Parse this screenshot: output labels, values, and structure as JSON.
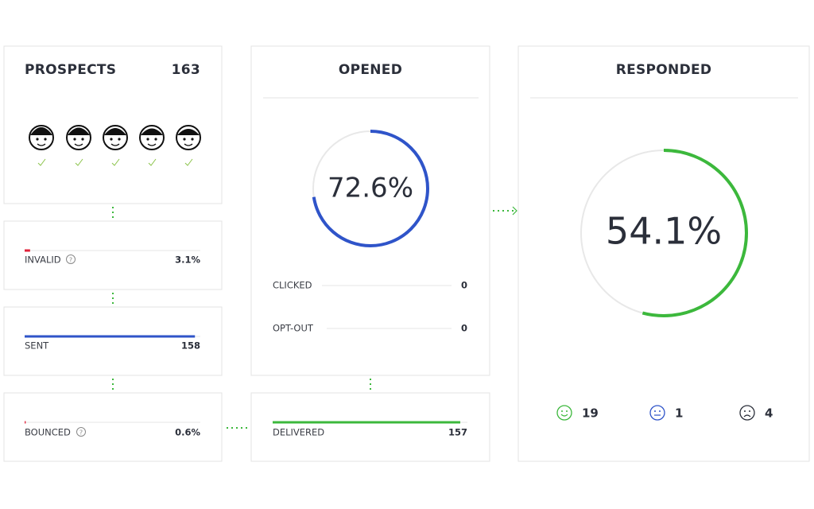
{
  "prospects": {
    "title": "PROSPECTS",
    "count": 163
  },
  "invalid": {
    "label": "INVALID",
    "value": {
      "value": 3.1,
      "label": "3.1%"
    },
    "color": "#e0223a"
  },
  "sent": {
    "label": "SENT",
    "value": 158,
    "color": "#2f54c9"
  },
  "bounced": {
    "label": "BOUNCED",
    "value": {
      "value": 0.6,
      "label": "0.6%"
    },
    "color": "#e0223a"
  },
  "opened": {
    "title": "OPENED",
    "rate": {
      "value": 72.6,
      "label": "72.6%"
    },
    "color": "#2f54c9",
    "rows": [
      {
        "label": "CLICKED",
        "value": 0
      },
      {
        "label": "OPT-OUT",
        "value": 0
      }
    ]
  },
  "delivered": {
    "label": "DELIVERED",
    "value": 157,
    "color": "#3cb83c"
  },
  "responded": {
    "title": "RESPONDED",
    "rate": {
      "value": 54.1,
      "label": "54.1%"
    },
    "color": "#3cb83c",
    "sentiments": [
      {
        "value": 19,
        "color": "#3cb83c"
      },
      {
        "value": 1,
        "color": "#2f54c9"
      },
      {
        "value": 4,
        "color": "#2b2f3a"
      }
    ]
  }
}
